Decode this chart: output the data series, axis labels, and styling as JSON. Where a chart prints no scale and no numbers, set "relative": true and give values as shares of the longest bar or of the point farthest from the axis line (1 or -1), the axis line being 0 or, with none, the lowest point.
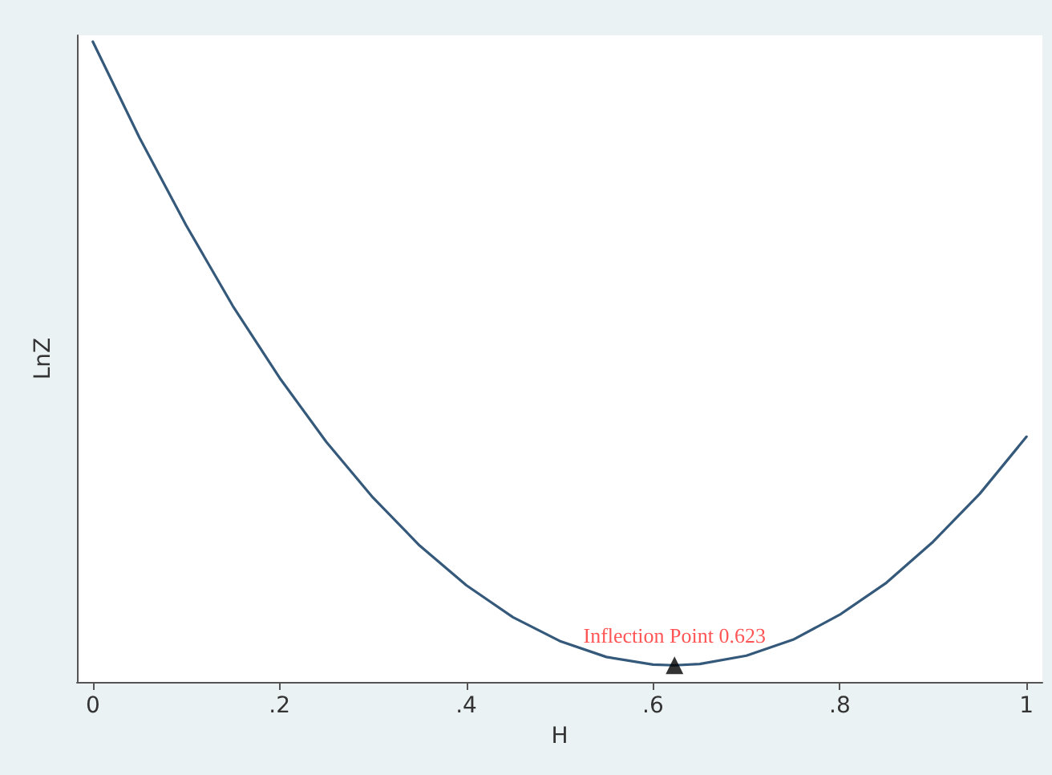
{
  "chart_data": {
    "type": "line",
    "xlabel": "H",
    "ylabel": "LnZ",
    "relative": true,
    "marker": "none",
    "xlim": [
      -0.017,
      1.017
    ],
    "xticks": [
      0,
      {
        "value": 0.2,
        "label": ".2"
      },
      {
        "value": 0.4,
        "label": ".4"
      },
      {
        "value": 0.6,
        "label": ".6"
      },
      {
        "value": 0.8,
        "label": ".8"
      },
      1
    ],
    "series": [
      {
        "color": "#34597a",
        "x": [
          0,
          0.05,
          0.1,
          0.15,
          0.2,
          0.25,
          0.3,
          0.35,
          0.4,
          0.45,
          0.5,
          0.55,
          0.6,
          0.623,
          0.65,
          0.7,
          0.75,
          0.8,
          0.85,
          0.9,
          0.95,
          1
        ],
        "values": [
          1.0,
          0.85,
          0.713,
          0.587,
          0.475,
          0.375,
          0.288,
          0.213,
          0.151,
          0.101,
          0.064,
          0.039,
          0.027,
          0.026,
          0.028,
          0.041,
          0.066,
          0.105,
          0.155,
          0.219,
          0.294,
          0.383
        ]
      },
      {
        "type": "scatter",
        "color": "#000000",
        "marker": "triangle",
        "x": [
          0.623
        ],
        "values": [
          0.026
        ]
      }
    ],
    "annotations": [
      {
        "text": "Inflection Point 0.623",
        "x": 0.623,
        "y": 0.026
      }
    ]
  }
}
